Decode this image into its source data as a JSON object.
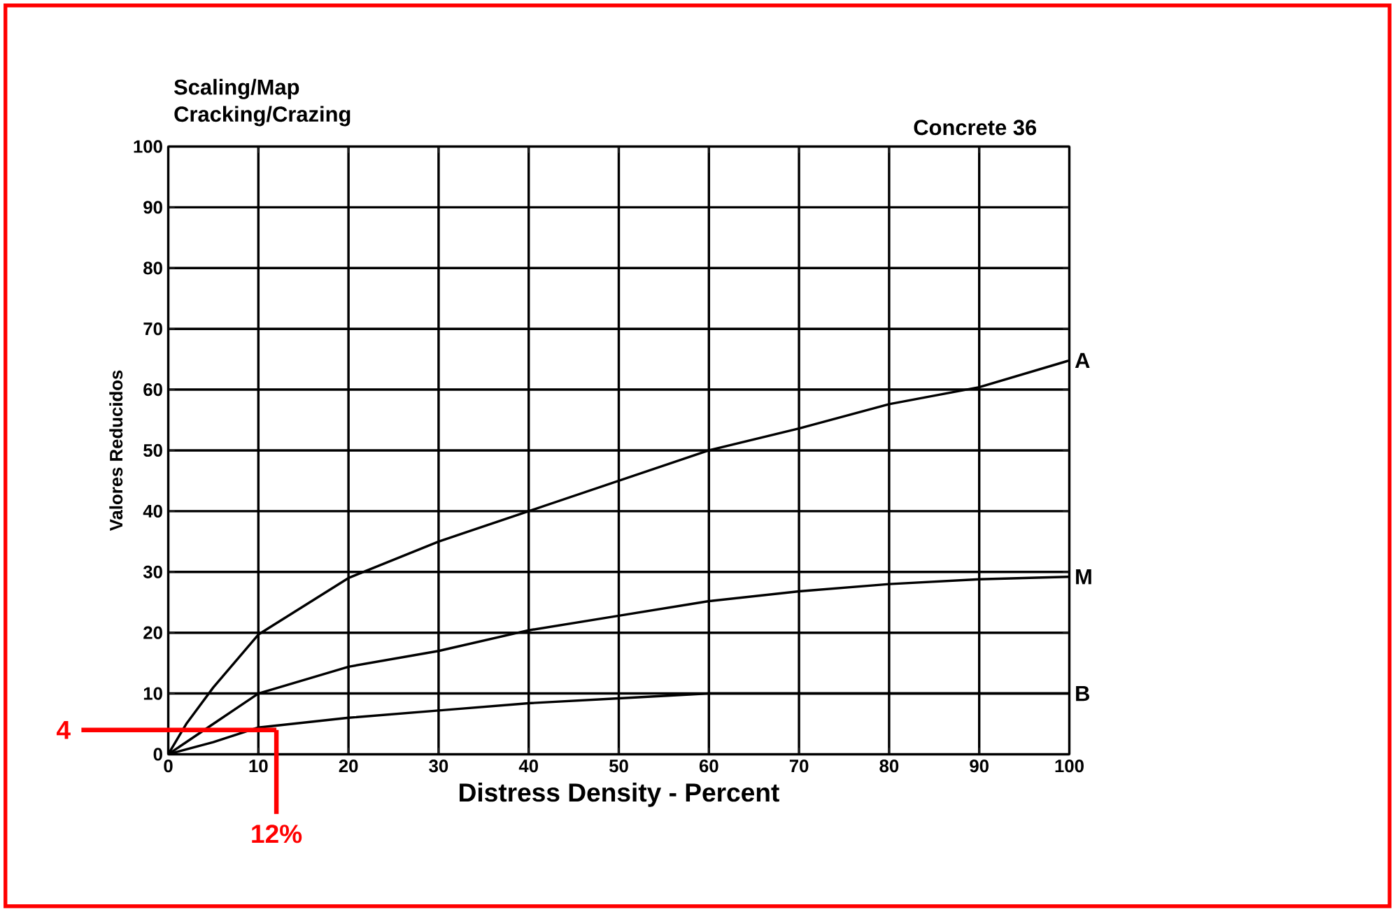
{
  "chart_data": {
    "type": "line",
    "title": "Scaling/Map",
    "subtitle": "Cracking/Crazing",
    "xlabel": "Distress Density - Percent",
    "ylabel": "Valores Reducidos",
    "xlim": [
      0,
      100
    ],
    "ylim": [
      0,
      100
    ],
    "xticks": [
      0,
      10,
      20,
      30,
      40,
      50,
      60,
      70,
      80,
      90,
      100
    ],
    "yticks": [
      0,
      10,
      20,
      30,
      40,
      50,
      60,
      70,
      80,
      90,
      100
    ],
    "grid": true,
    "marker": "none",
    "line_style": "solid",
    "series": [
      {
        "name": "A",
        "color": "#000000",
        "x": [
          0,
          2,
          5,
          10,
          20,
          30,
          40,
          50,
          60,
          70,
          80,
          90,
          100
        ],
        "values": [
          0,
          5,
          11,
          19.7,
          29,
          35,
          40,
          45,
          50,
          53.6,
          57.6,
          60.4,
          64.8
        ]
      },
      {
        "name": "M",
        "color": "#000000",
        "x": [
          0,
          5,
          10,
          20,
          30,
          40,
          50,
          60,
          70,
          80,
          90,
          100
        ],
        "values": [
          0,
          5,
          10,
          14.4,
          17,
          20.4,
          22.8,
          25.2,
          26.8,
          28,
          28.8,
          29.2
        ]
      },
      {
        "name": "B",
        "color": "#000000",
        "x": [
          0,
          5,
          10,
          20,
          30,
          40,
          50,
          60,
          70,
          80,
          90,
          100
        ],
        "values": [
          0,
          2,
          4.4,
          6,
          7.2,
          8.4,
          9.2,
          10,
          10,
          10,
          10,
          10
        ]
      }
    ],
    "annotations": [
      "Concrete 36",
      {
        "text": "4",
        "x": 12,
        "y": 4
      },
      {
        "text": "12%",
        "x": 12,
        "y": 4
      }
    ]
  }
}
